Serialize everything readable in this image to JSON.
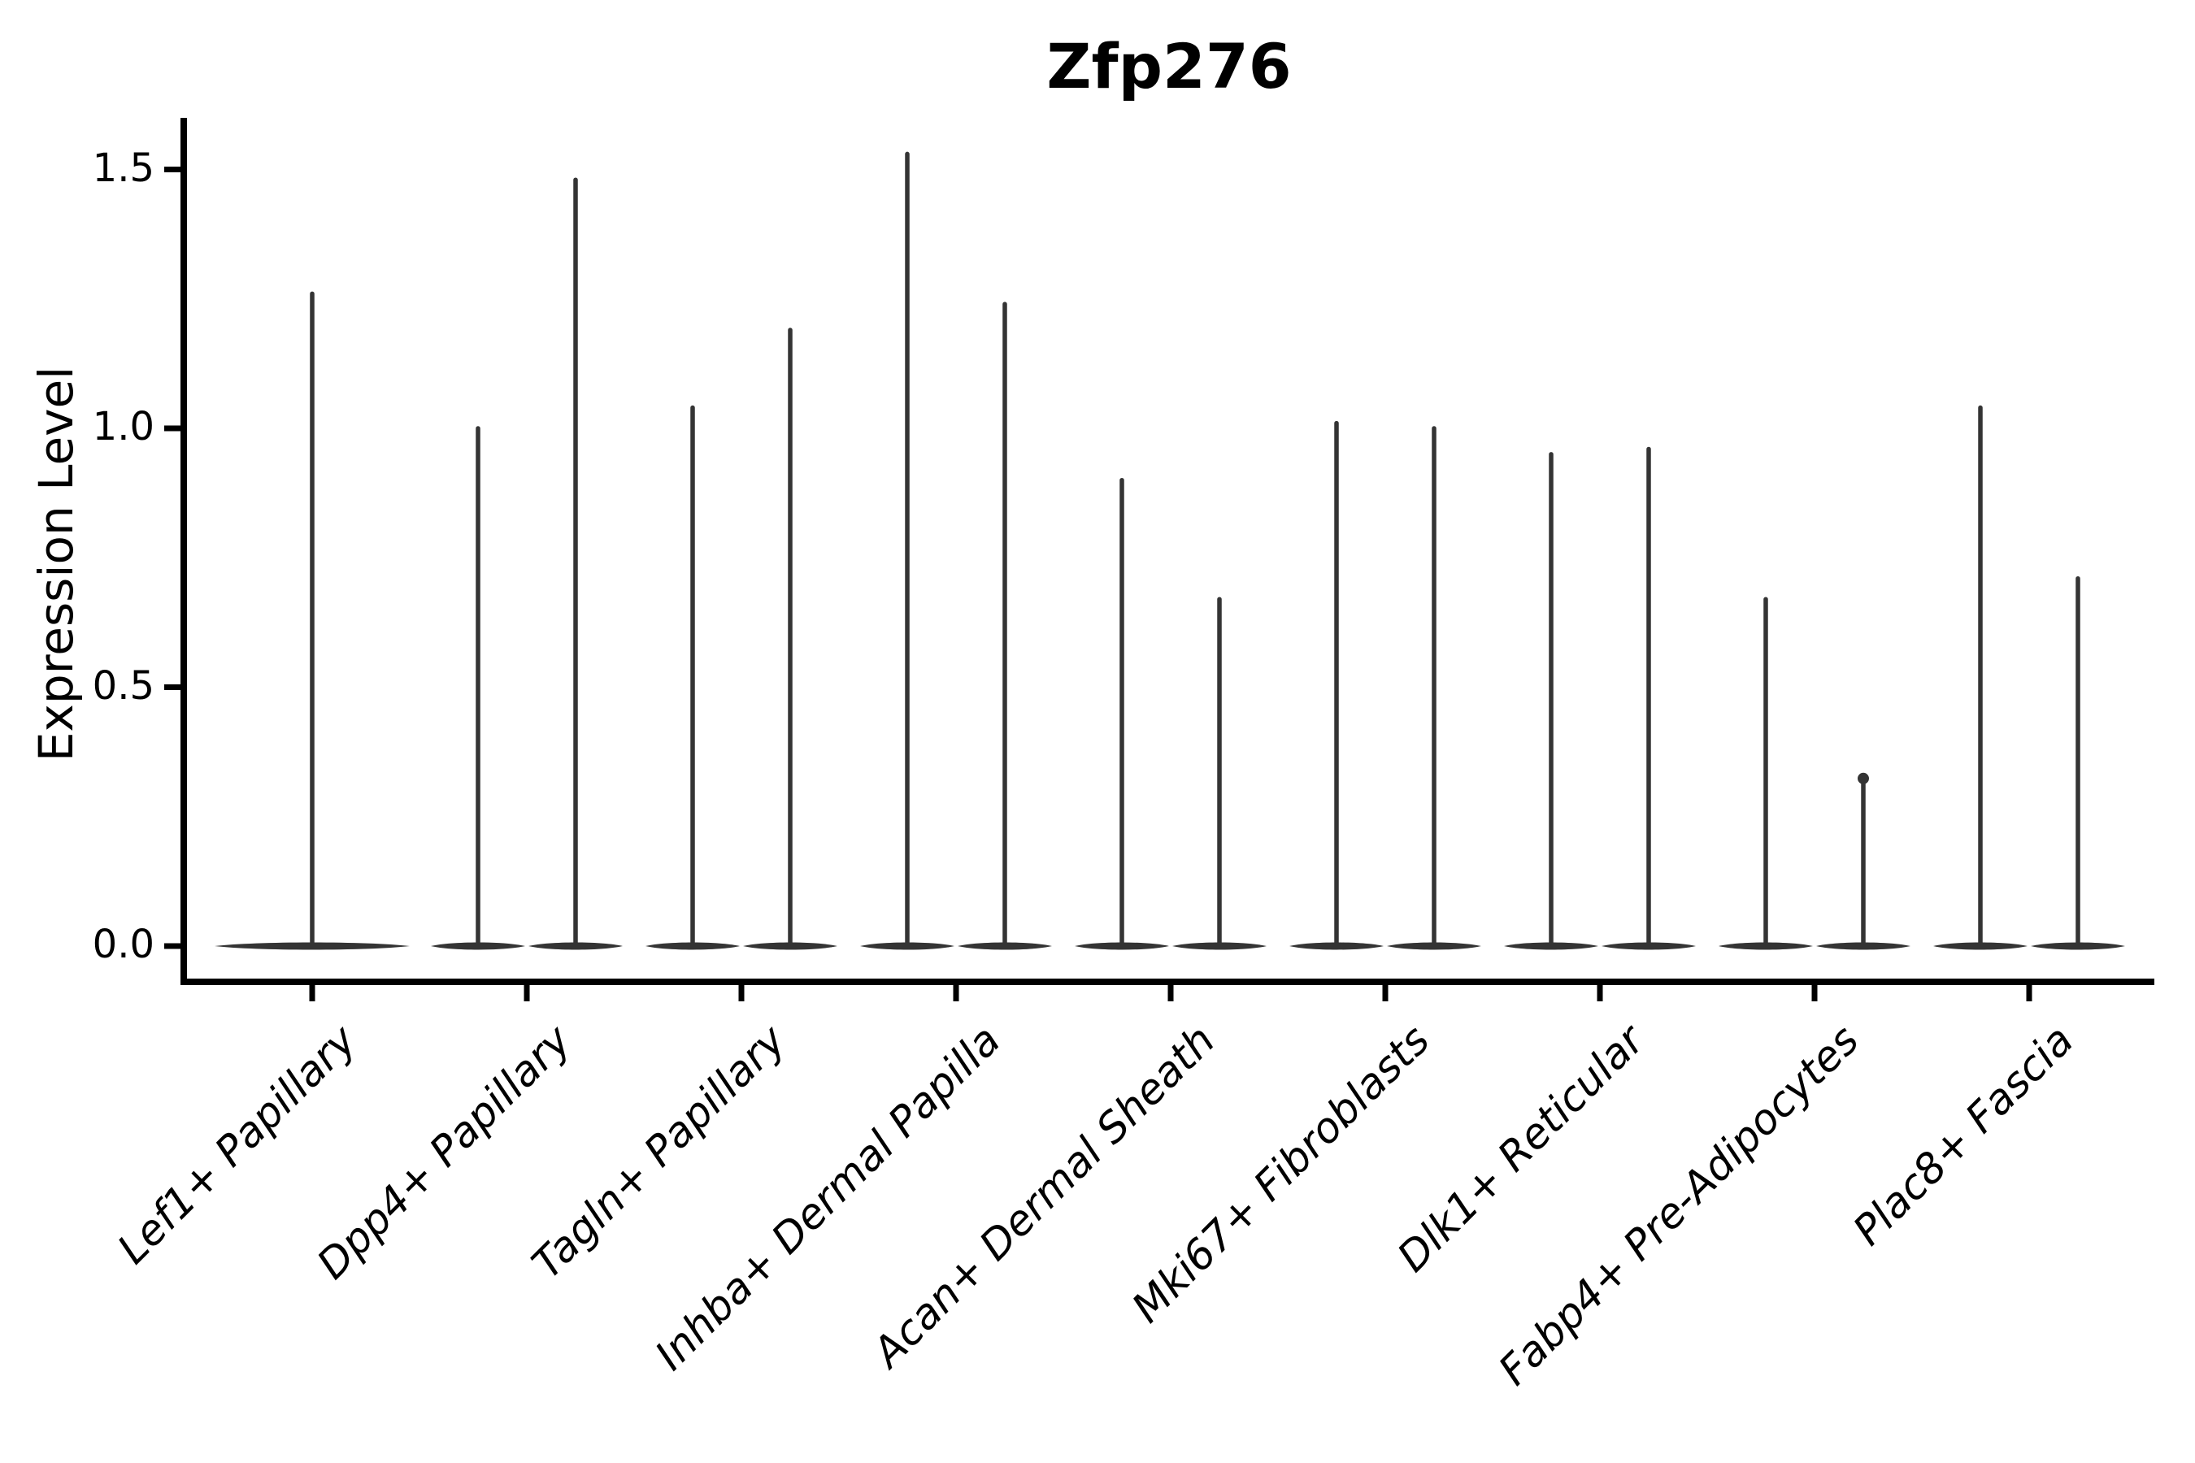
{
  "title": "Zfp276",
  "ylabel": "Expression Level",
  "chart_data": {
    "type": "violin",
    "title": "Zfp276",
    "xlabel": "",
    "ylabel": "Expression Level",
    "legend": "none",
    "grid": false,
    "background": "#ffffff",
    "colors": {
      "violin": "#343434",
      "axis": "#000000",
      "text": "#000000"
    },
    "yticks": [
      {
        "value": 0.0,
        "label": "0.0"
      },
      {
        "value": 0.5,
        "label": "0.5"
      },
      {
        "value": 1.0,
        "label": "1.0"
      },
      {
        "value": 1.5,
        "label": "1.5"
      }
    ],
    "ylim": [
      -0.07,
      1.6
    ],
    "baseline_value": 0.0,
    "categories": [
      "Lef1+ Papillary",
      "Dpp4+ Papillary",
      "Tagln+ Papillary",
      "Inhba+ Dermal Papilla",
      "Acan+ Dermal Sheath",
      "Mki67+ Fibroblasts",
      "Dlk1+ Reticular",
      "Fabp4+ Pre-Adipocytes",
      "Plac8+ Fascia"
    ],
    "violins": [
      {
        "category": "Lef1+ Papillary",
        "max_values": [
          1.26
        ]
      },
      {
        "category": "Dpp4+ Papillary",
        "max_values": [
          1.0,
          1.48
        ]
      },
      {
        "category": "Tagln+ Papillary",
        "max_values": [
          1.04,
          1.19
        ]
      },
      {
        "category": "Inhba+ Dermal Papilla",
        "max_values": [
          1.53,
          1.24
        ]
      },
      {
        "category": "Acan+ Dermal Sheath",
        "max_values": [
          0.9,
          0.67
        ]
      },
      {
        "category": "Mki67+ Fibroblasts",
        "max_values": [
          1.01,
          1.0
        ]
      },
      {
        "category": "Dlk1+ Reticular",
        "max_values": [
          0.95,
          0.96
        ]
      },
      {
        "category": "Fabp4+ Pre-Adipocytes",
        "max_values": [
          0.67,
          0.33
        ],
        "tip_knob_on": 1
      },
      {
        "category": "Plac8+ Fascia",
        "max_values": [
          1.04,
          0.71
        ]
      }
    ]
  }
}
